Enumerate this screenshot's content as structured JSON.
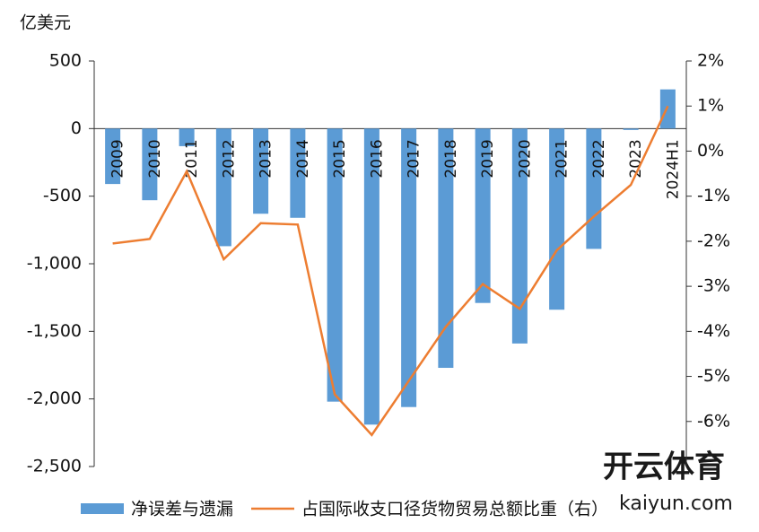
{
  "chart_data": {
    "type": "bar-line",
    "y_label": "亿美元",
    "categories": [
      "2009",
      "2010",
      "2011",
      "2012",
      "2013",
      "2014",
      "2015",
      "2016",
      "2017",
      "2018",
      "2019",
      "2020",
      "2021",
      "2022",
      "2023",
      "2024H1"
    ],
    "series": [
      {
        "name": "净误差与遗漏",
        "type": "bar",
        "color": "#5b9bd5",
        "values": [
          -410,
          -530,
          -130,
          -870,
          -630,
          -660,
          -2020,
          -2190,
          -2060,
          -1770,
          -1290,
          -1590,
          -1340,
          -890,
          -10,
          290
        ]
      },
      {
        "name": "占国际收支口径货物贸易总额比重（右）",
        "type": "line",
        "axis": "y2",
        "color": "#ed7d31",
        "values": [
          -2.05,
          -1.95,
          -0.45,
          -2.4,
          -1.6,
          -1.63,
          -5.4,
          -6.3,
          -5.1,
          -3.9,
          -2.95,
          -3.5,
          -2.2,
          -1.45,
          -0.75,
          1.0
        ]
      }
    ],
    "ylim": [
      -2500,
      500
    ],
    "yticks": [
      500,
      0,
      -500,
      {
        "value": -1000,
        "label": "-1,000"
      },
      {
        "value": -1500,
        "label": "-1,500"
      },
      {
        "value": -2000,
        "label": "-2,000"
      },
      {
        "value": -2500,
        "label": "-2,500"
      }
    ],
    "y2lim": [
      -7,
      2
    ],
    "y2ticks": [
      {
        "value": 2,
        "label": "2%"
      },
      {
        "value": 1,
        "label": "1%"
      },
      {
        "value": 0,
        "label": "0%"
      },
      {
        "value": -1,
        "label": "-1%"
      },
      {
        "value": -2,
        "label": "-2%"
      },
      {
        "value": -3,
        "label": "-3%"
      },
      {
        "value": -4,
        "label": "-4%"
      },
      {
        "value": -5,
        "label": "-5%"
      },
      {
        "value": -6,
        "label": "-6%"
      }
    ],
    "watermark": [
      "开云体育",
      "kaiyun.com"
    ]
  }
}
